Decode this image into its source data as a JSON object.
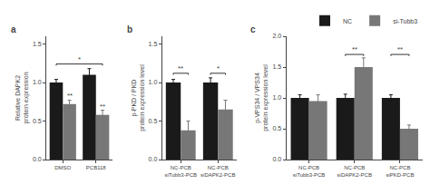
{
  "chart_data": [
    {
      "type": "bar",
      "title": "a",
      "categories": [
        "DMSO",
        "PCB118"
      ],
      "series": [
        {
          "name": "NC",
          "color": "#1a1a1a",
          "values": [
            1.0,
            1.1
          ],
          "errors": [
            0.04,
            0.08
          ]
        },
        {
          "name": "si-Tubb3",
          "color": "#777777",
          "values": [
            0.72,
            0.58
          ],
          "errors": [
            0.05,
            0.06
          ]
        }
      ],
      "ylabel": "Relative DAPK2\nprotein expression",
      "ylim": [
        0.0,
        1.6
      ],
      "yticks": [
        {
          "value": 0.0,
          "label": "0.0"
        },
        0.5,
        {
          "value": 1.0,
          "label": "1.0"
        },
        1.5
      ],
      "grid": false,
      "legend": "upper right",
      "annotations": [
        {
          "text": "**",
          "x": "DMSO",
          "y": 0.76
        },
        {
          "text": "**",
          "x": "PCB118",
          "y": 0.62
        },
        {
          "text": "*",
          "x": [
            "DMSO",
            "PCB118"
          ],
          "y": 1.22
        }
      ]
    },
    {
      "type": "bar",
      "title": "b",
      "categories": [
        "NC-PCB\nsiTubb3-PCB",
        "NC-PCB\nsiDAPK2-PCB"
      ],
      "series": [
        {
          "name": "NC",
          "color": "#1a1a1a",
          "values": [
            1.0,
            1.0
          ],
          "errors": [
            0.04,
            0.06
          ]
        },
        {
          "name": "si-Tubb3",
          "color": "#777777",
          "values": [
            0.38,
            0.65
          ],
          "errors": [
            0.12,
            0.12
          ]
        }
      ],
      "ylabel": "p-PKD / PKD\nprotein expression level",
      "ylim": [
        0.0,
        1.6
      ],
      "yticks": [
        {
          "value": 0.0,
          "label": "0.0"
        },
        0.5,
        {
          "value": 1.0,
          "label": "1.0"
        },
        1.5
      ],
      "grid": false,
      "annotations": [
        {
          "text": "**",
          "x": [
            "NC-PCB\nsiTubb3-PCB",
            "NC-PCB\nsiTubb3-PCB"
          ],
          "y": 1.1
        },
        {
          "text": "*",
          "x": [
            "NC-PCB\nsiDAPK2-PCB",
            "NC-PCB\nsiDAPK2-PCB"
          ],
          "y": 1.1
        }
      ]
    },
    {
      "type": "bar",
      "title": "c",
      "categories": [
        "NC-PCB\nsiTubb3-PCB",
        "NC-PCB\nsiDAPK2-PCB",
        "NC-PCB\nsiPKD-PCB"
      ],
      "series": [
        {
          "name": "NC",
          "color": "#1a1a1a",
          "values": [
            1.0,
            1.0,
            1.0
          ],
          "errors": [
            0.05,
            0.06,
            0.05
          ]
        },
        {
          "name": "si-Tubb3",
          "color": "#777777",
          "values": [
            0.95,
            1.5,
            0.5
          ],
          "errors": [
            0.1,
            0.15,
            0.06
          ]
        }
      ],
      "ylabel": "p-VPS34 / VPS34\nprotein expression level",
      "ylim": [
        0.0,
        2.0
      ],
      "yticks": [
        {
          "value": 0.0,
          "label": "0.0"
        },
        0.5,
        {
          "value": 1.0,
          "label": "1.0"
        },
        1.5,
        {
          "value": 2.0,
          "label": "2.0"
        }
      ],
      "grid": false,
      "annotations": [
        {
          "text": "**",
          "x": [
            "NC-PCB\nsiDAPK2-PCB",
            "NC-PCB\nsiDAPK2-PCB"
          ],
          "y": 1.68
        },
        {
          "text": "**",
          "x": [
            "NC-PCB\nsiPKD-PCB",
            "NC-PCB\nsiPKD-PCB"
          ],
          "y": 1.68
        }
      ]
    }
  ]
}
